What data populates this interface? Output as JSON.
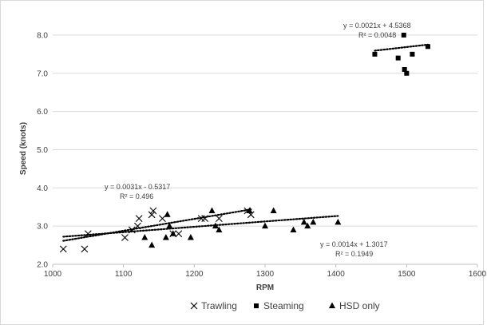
{
  "chart_data": {
    "type": "scatter",
    "title": "",
    "xlabel": "RPM",
    "ylabel": "Speed (knots)",
    "xlim": [
      1000,
      1600
    ],
    "ylim": [
      2.0,
      8.5
    ],
    "x_ticks": [
      1000,
      1100,
      1200,
      1300,
      1400,
      1500,
      1600
    ],
    "x_tick_labels": [
      "1000",
      "1100",
      "1200",
      "1300",
      "1400",
      "1500",
      "1600"
    ],
    "y_ticks": [
      2.0,
      3.0,
      4.0,
      5.0,
      6.0,
      7.0,
      8.0
    ],
    "y_tick_labels": [
      "2.0",
      "3.0",
      "4.0",
      "5.0",
      "6.0",
      "7.0",
      "8.0"
    ],
    "grid": "horizontal",
    "legend_position": "bottom",
    "series": [
      {
        "name": "Trawling",
        "marker": "x",
        "points": [
          [
            1015,
            2.4
          ],
          [
            1045,
            2.4
          ],
          [
            1050,
            2.8
          ],
          [
            1102,
            2.7
          ],
          [
            1112,
            2.9
          ],
          [
            1120,
            3.0
          ],
          [
            1122,
            3.2
          ],
          [
            1140,
            3.3
          ],
          [
            1142,
            3.4
          ],
          [
            1155,
            3.2
          ],
          [
            1170,
            2.8
          ],
          [
            1178,
            2.8
          ],
          [
            1210,
            3.2
          ],
          [
            1215,
            3.2
          ],
          [
            1235,
            3.2
          ],
          [
            1275,
            3.4
          ],
          [
            1280,
            3.3
          ]
        ],
        "trendline": {
          "type": "linear",
          "slope": 0.0031,
          "intercept": -0.5317,
          "x_range": [
            1015,
            1280
          ],
          "equation": "y = 0.0031x - 0.5317",
          "r2": "R² = 0.496"
        }
      },
      {
        "name": "Steaming",
        "marker": "square",
        "points": [
          [
            1455,
            7.5
          ],
          [
            1488,
            7.4
          ],
          [
            1496,
            8.0
          ],
          [
            1497,
            7.1
          ],
          [
            1500,
            7.0
          ],
          [
            1508,
            7.5
          ],
          [
            1530,
            7.7
          ]
        ],
        "trendline": {
          "type": "linear",
          "slope": 0.0021,
          "intercept": 4.5368,
          "x_range": [
            1455,
            1530
          ],
          "equation": "y = 0.0021x + 4.5368",
          "r2": "R² = 0.0048"
        }
      },
      {
        "name": "HSD only",
        "marker": "triangle",
        "points": [
          [
            1130,
            2.7
          ],
          [
            1140,
            2.5
          ],
          [
            1160,
            2.7
          ],
          [
            1162,
            3.3
          ],
          [
            1165,
            3.0
          ],
          [
            1170,
            2.8
          ],
          [
            1195,
            2.7
          ],
          [
            1225,
            3.4
          ],
          [
            1230,
            3.0
          ],
          [
            1235,
            2.9
          ],
          [
            1278,
            3.4
          ],
          [
            1300,
            3.0
          ],
          [
            1312,
            3.4
          ],
          [
            1340,
            2.9
          ],
          [
            1355,
            3.1
          ],
          [
            1360,
            3.0
          ],
          [
            1368,
            3.1
          ],
          [
            1403,
            3.1
          ]
        ],
        "trendline": {
          "type": "linear",
          "slope": 0.0014,
          "intercept": 1.3017,
          "x_range": [
            1015,
            1403
          ],
          "equation": "y = 0.0014x + 1.3017",
          "r2": "R² = 0.1949"
        }
      }
    ]
  }
}
